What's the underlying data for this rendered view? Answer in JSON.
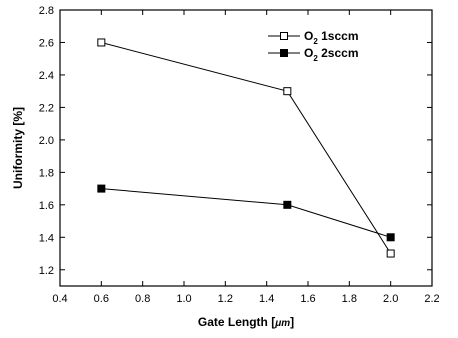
{
  "chart_data": {
    "type": "line",
    "xlabel": "Gate Length [",
    "xlabel_unit": "μm",
    "xlabel_close": "]",
    "ylabel": "Uniformity [%]",
    "xlim": [
      0.4,
      2.2
    ],
    "ylim": [
      1.1,
      2.8
    ],
    "xticks": [
      0.4,
      0.6,
      0.8,
      1.0,
      1.2,
      1.4,
      1.6,
      1.8,
      2.0,
      2.2
    ],
    "yticks": [
      1.2,
      1.4,
      1.6,
      1.8,
      2.0,
      2.2,
      2.4,
      2.6,
      2.8
    ],
    "xtick_labels": [
      "0.4",
      "0.6",
      "0.8",
      "1.0",
      "1.2",
      "1.4",
      "1.6",
      "1.8",
      "2.0",
      "2.2"
    ],
    "ytick_labels": [
      "1.2",
      "1.4",
      "1.6",
      "1.8",
      "2.0",
      "2.2",
      "2.4",
      "2.6",
      "2.8"
    ],
    "grid": false,
    "legend_position": "top-right",
    "series": [
      {
        "name": "O2 1sccm",
        "legend_main": "O",
        "legend_sub": "2",
        "legend_rest": " 1sccm",
        "marker": "open-square",
        "x": [
          0.6,
          1.5,
          2.0
        ],
        "y": [
          2.6,
          2.3,
          1.3
        ]
      },
      {
        "name": "O2 2sccm",
        "legend_main": "O",
        "legend_sub": "2",
        "legend_rest": " 2sccm",
        "marker": "filled-square",
        "x": [
          0.6,
          1.5,
          2.0
        ],
        "y": [
          1.7,
          1.6,
          1.4
        ]
      }
    ]
  }
}
